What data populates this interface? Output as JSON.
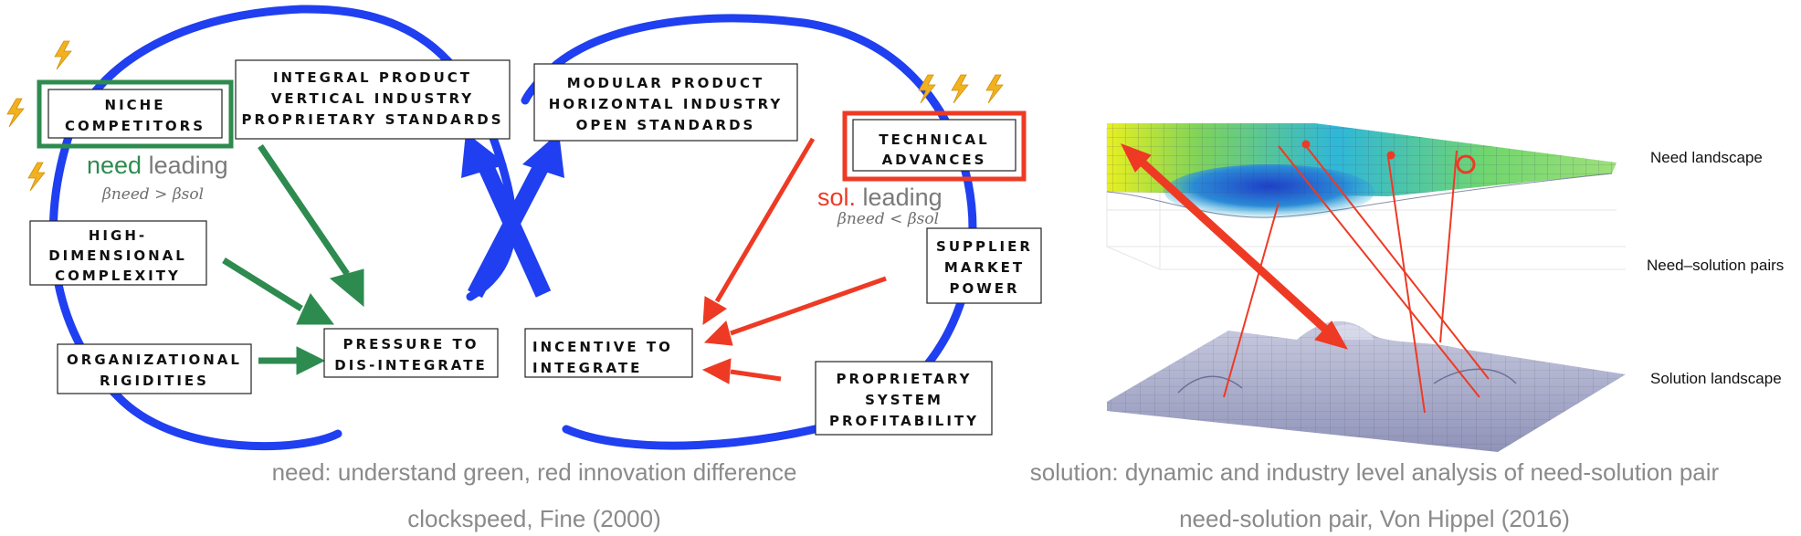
{
  "left_diagram": {
    "boxes": {
      "niche": [
        "NICHE",
        "COMPETITORS"
      ],
      "integral": [
        "INTEGRAL PRODUCT",
        "VERTICAL INDUSTRY",
        "PROPRIETARY STANDARDS"
      ],
      "modular": [
        "MODULAR PRODUCT",
        "HORIZONTAL INDUSTRY",
        "OPEN STANDARDS"
      ],
      "technical": [
        "TECHNICAL",
        "ADVANCES"
      ],
      "high_dim": [
        "HIGH-",
        "DIMENSIONAL",
        "COMPLEXITY"
      ],
      "supplier": [
        "SUPPLIER",
        "MARKET",
        "POWER"
      ],
      "org": [
        "ORGANIZATIONAL",
        "RIGIDITIES"
      ],
      "pressure": [
        "PRESSURE TO",
        "DIS-INTEGRATE"
      ],
      "incentive": [
        "INCENTIVE TO",
        "INTEGRATE"
      ],
      "proprietary": [
        "PROPRIETARY",
        "SYSTEM",
        "PROFITABILITY"
      ]
    },
    "need_leading": {
      "word": "need",
      "rest": " leading",
      "beta": "βneed > βsol"
    },
    "sol_leading": {
      "word": "sol.",
      "rest": " leading",
      "beta": "βneed < βsol"
    },
    "colors": {
      "loop": "#1f3ff0",
      "green": "#2e8b4f",
      "red": "#ee3a24",
      "bolt": "#f2b11e"
    }
  },
  "right_diagram": {
    "labels": {
      "need": "Need landscape",
      "pairs": "Need–solution pairs",
      "solution": "Solution landscape"
    }
  },
  "captions": {
    "left_line1": "need: understand green, red innovation difference",
    "left_line2": "clockspeed, Fine (2000)",
    "right_line1": "solution: dynamic and industry level analysis of need-solution pair",
    "right_line2": "need-solution pair, Von Hippel (2016)"
  }
}
